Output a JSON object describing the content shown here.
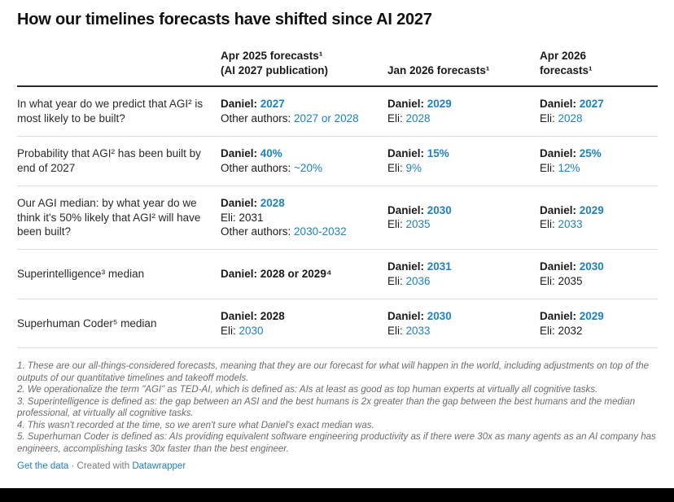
{
  "title": "How our timelines forecasts have shifted since AI 2027",
  "colors": {
    "accent_blue": "#1d81c2",
    "header_rule": "#2b2b2b",
    "row_rule": "#dddddd",
    "footnote_gray": "#6b6b6b"
  },
  "table": {
    "headers": [
      "",
      "Apr 2025 forecasts¹\n(AI 2027 publication)",
      "Jan 2026 forecasts¹",
      "Apr 2026\nforecasts¹"
    ],
    "rows": [
      {
        "question": "In what year do we predict that AGI² is most likely to be built?",
        "cells": [
          [
            [
              {
                "t": "Daniel: ",
                "b": true
              },
              {
                "t": "2027",
                "b": true,
                "blue": true
              }
            ],
            [
              {
                "t": "Other authors: "
              },
              {
                "t": "2027 or 2028",
                "blue": true
              }
            ]
          ],
          [
            [
              {
                "t": "Daniel: ",
                "b": true
              },
              {
                "t": "2029",
                "b": true,
                "blue": true
              }
            ],
            [
              {
                "t": "Eli: "
              },
              {
                "t": "2028",
                "blue": true
              }
            ]
          ],
          [
            [
              {
                "t": "Daniel: ",
                "b": true
              },
              {
                "t": "2027",
                "b": true,
                "blue": true
              }
            ],
            [
              {
                "t": "Eli: "
              },
              {
                "t": "2028",
                "blue": true
              }
            ]
          ]
        ]
      },
      {
        "question": "Probability that AGI² has been built by end of 2027",
        "cells": [
          [
            [
              {
                "t": "Daniel: ",
                "b": true
              },
              {
                "t": "40%",
                "b": true,
                "blue": true
              }
            ],
            [
              {
                "t": "Other authors: "
              },
              {
                "t": "~20%",
                "blue": true
              }
            ]
          ],
          [
            [
              {
                "t": "Daniel: ",
                "b": true
              },
              {
                "t": "15%",
                "b": true,
                "blue": true
              }
            ],
            [
              {
                "t": "Eli: "
              },
              {
                "t": "9%",
                "blue": true
              }
            ]
          ],
          [
            [
              {
                "t": "Daniel: ",
                "b": true
              },
              {
                "t": "25%",
                "b": true,
                "blue": true
              }
            ],
            [
              {
                "t": "Eli: "
              },
              {
                "t": "12%",
                "blue": true
              }
            ]
          ]
        ]
      },
      {
        "question": "Our AGI median: by what year do we think it's 50% likely that AGI² will have been built?",
        "cells": [
          [
            [
              {
                "t": "Daniel: ",
                "b": true
              },
              {
                "t": "2028",
                "b": true,
                "blue": true
              }
            ],
            [
              {
                "t": "Eli: 2031"
              }
            ],
            [
              {
                "t": "Other authors: "
              },
              {
                "t": "2030-2032",
                "blue": true
              }
            ]
          ],
          [
            [
              {
                "t": "Daniel: ",
                "b": true
              },
              {
                "t": "2030",
                "b": true,
                "blue": true
              }
            ],
            [
              {
                "t": "Eli: "
              },
              {
                "t": "2035",
                "blue": true
              }
            ]
          ],
          [
            [
              {
                "t": "Daniel: ",
                "b": true
              },
              {
                "t": "2029",
                "b": true,
                "blue": true
              }
            ],
            [
              {
                "t": "Eli: "
              },
              {
                "t": "2033",
                "blue": true
              }
            ]
          ]
        ]
      },
      {
        "question": "Superintelligence³ median",
        "cells": [
          [
            [
              {
                "t": "Daniel: 2028 or 2029⁴",
                "b": true
              }
            ]
          ],
          [
            [
              {
                "t": "Daniel: ",
                "b": true
              },
              {
                "t": "2031",
                "b": true,
                "blue": true
              }
            ],
            [
              {
                "t": "Eli: "
              },
              {
                "t": "2036",
                "blue": true
              }
            ]
          ],
          [
            [
              {
                "t": "Daniel: ",
                "b": true
              },
              {
                "t": "2030",
                "b": true,
                "blue": true
              }
            ],
            [
              {
                "t": "Eli: 2035"
              }
            ]
          ]
        ]
      },
      {
        "question": "Superhuman Coder⁵ median",
        "cells": [
          [
            [
              {
                "t": "Daniel: 2028",
                "b": true
              }
            ],
            [
              {
                "t": "Eli: "
              },
              {
                "t": "2030",
                "blue": true
              }
            ]
          ],
          [
            [
              {
                "t": "Daniel: ",
                "b": true
              },
              {
                "t": "2030",
                "b": true,
                "blue": true
              }
            ],
            [
              {
                "t": "Eli: "
              },
              {
                "t": "2033",
                "blue": true
              }
            ]
          ],
          [
            [
              {
                "t": "Daniel: ",
                "b": true
              },
              {
                "t": "2029",
                "b": true,
                "blue": true
              }
            ],
            [
              {
                "t": "Eli: 2032"
              }
            ]
          ]
        ]
      }
    ]
  },
  "footnotes": [
    "1. These are our all-things-considered forecasts, meaning that they are our forecast for what will happen in the world, including adjustments on top of the outputs of our quantitative timelines and takeoff models.",
    "2. We operationalize the term \"AGI\" as TED-AI, which is defined as: AIs at least as good as top human experts at virtually all cognitive tasks.",
    "3. Superintelligence is defined as: the gap between an ASI and the best humans is 2x greater than the gap between the best humans and the median professional, at virtually all cognitive tasks.",
    "4. This wasn't recorded at the time, so we aren't sure what Daniel's exact median was.",
    "5. Superhuman Coder is defined as: AIs providing equivalent software engineering productivity as if there were 30x as many agents as an AI company has engineers, accomplishing tasks 30x faster than the best engineer.",
    "Get the data · Created with Datawrapper"
  ],
  "footer": {
    "get_data_label": "Get the data",
    "separator": "·",
    "created_with_label": "Created with",
    "brand_label": "Datawrapper"
  }
}
